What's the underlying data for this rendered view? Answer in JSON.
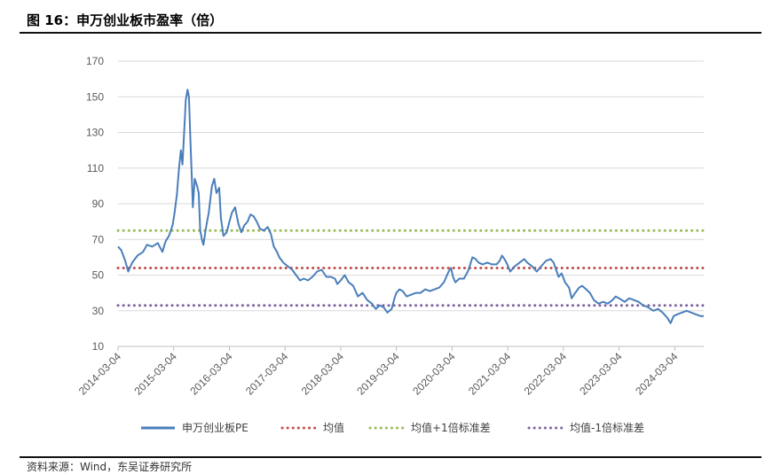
{
  "figure": {
    "title": "图 16：申万创业板市盈率（倍）",
    "source": "资料来源：Wind，东吴证券研究所"
  },
  "chart_data": {
    "type": "line",
    "title": "",
    "xlabel": "",
    "ylabel": "",
    "ylim": [
      10,
      170
    ],
    "yticks": [
      10,
      30,
      50,
      70,
      90,
      110,
      130,
      150,
      170
    ],
    "xlim": [
      "2014-03-04",
      "2024-09-10"
    ],
    "xticks": [
      "2014-03-04",
      "2015-03-04",
      "2016-03-04",
      "2017-03-04",
      "2018-03-04",
      "2019-03-04",
      "2020-03-04",
      "2021-03-04",
      "2022-03-04",
      "2023-03-04",
      "2024-03-04"
    ],
    "grid": "horizontal",
    "legend": "bottom",
    "series": [
      {
        "name": "申万创业板PE",
        "color": "#4A7EBB",
        "style": "solid",
        "points": [
          [
            "2014-03-04",
            66
          ],
          [
            "2014-03-25",
            64
          ],
          [
            "2014-04-20",
            58
          ],
          [
            "2014-05-10",
            52
          ],
          [
            "2014-06-05",
            57
          ],
          [
            "2014-07-10",
            61
          ],
          [
            "2014-08-15",
            63
          ],
          [
            "2014-09-10",
            67
          ],
          [
            "2014-10-15",
            66
          ],
          [
            "2014-11-20",
            68
          ],
          [
            "2014-12-20",
            63
          ],
          [
            "2015-01-10",
            69
          ],
          [
            "2015-02-01",
            72
          ],
          [
            "2015-02-25",
            78
          ],
          [
            "2015-03-10",
            85
          ],
          [
            "2015-03-25",
            95
          ],
          [
            "2015-04-08",
            110
          ],
          [
            "2015-04-20",
            120
          ],
          [
            "2015-05-01",
            112
          ],
          [
            "2015-05-12",
            130
          ],
          [
            "2015-05-22",
            148
          ],
          [
            "2015-06-03",
            154
          ],
          [
            "2015-06-12",
            150
          ],
          [
            "2015-06-22",
            125
          ],
          [
            "2015-07-03",
            100
          ],
          [
            "2015-07-08",
            88
          ],
          [
            "2015-07-20",
            104
          ],
          [
            "2015-08-05",
            100
          ],
          [
            "2015-08-15",
            96
          ],
          [
            "2015-08-25",
            75
          ],
          [
            "2015-09-05",
            70
          ],
          [
            "2015-09-15",
            67
          ],
          [
            "2015-10-01",
            76
          ],
          [
            "2015-10-20",
            85
          ],
          [
            "2015-11-10",
            100
          ],
          [
            "2015-11-25",
            104
          ],
          [
            "2015-12-10",
            96
          ],
          [
            "2015-12-28",
            99
          ],
          [
            "2016-01-08",
            82
          ],
          [
            "2016-01-25",
            72
          ],
          [
            "2016-02-15",
            74
          ],
          [
            "2016-03-04",
            80
          ],
          [
            "2016-03-20",
            85
          ],
          [
            "2016-04-10",
            88
          ],
          [
            "2016-05-01",
            79
          ],
          [
            "2016-05-20",
            74
          ],
          [
            "2016-06-10",
            78
          ],
          [
            "2016-07-01",
            80
          ],
          [
            "2016-07-20",
            84
          ],
          [
            "2016-08-10",
            83
          ],
          [
            "2016-08-30",
            80
          ],
          [
            "2016-09-20",
            76
          ],
          [
            "2016-10-15",
            75
          ],
          [
            "2016-11-10",
            77
          ],
          [
            "2016-12-01",
            73
          ],
          [
            "2016-12-20",
            66
          ],
          [
            "2017-01-10",
            63
          ],
          [
            "2017-01-25",
            60
          ],
          [
            "2017-02-20",
            57
          ],
          [
            "2017-03-20",
            55
          ],
          [
            "2017-04-20",
            53
          ],
          [
            "2017-05-15",
            50
          ],
          [
            "2017-06-10",
            47
          ],
          [
            "2017-07-05",
            48
          ],
          [
            "2017-08-01",
            47
          ],
          [
            "2017-08-30",
            49
          ],
          [
            "2017-09-30",
            52
          ],
          [
            "2017-10-30",
            53
          ],
          [
            "2017-11-30",
            49
          ],
          [
            "2017-12-30",
            49
          ],
          [
            "2018-01-25",
            48
          ],
          [
            "2018-02-10",
            45
          ],
          [
            "2018-03-04",
            47
          ],
          [
            "2018-03-30",
            50
          ],
          [
            "2018-04-25",
            46
          ],
          [
            "2018-05-25",
            44
          ],
          [
            "2018-06-25",
            38
          ],
          [
            "2018-07-25",
            40
          ],
          [
            "2018-08-25",
            36
          ],
          [
            "2018-09-25",
            34
          ],
          [
            "2018-10-20",
            31
          ],
          [
            "2018-11-15",
            33
          ],
          [
            "2018-12-10",
            32
          ],
          [
            "2019-01-04",
            29
          ],
          [
            "2019-02-01",
            31
          ],
          [
            "2019-02-20",
            37
          ],
          [
            "2019-03-04",
            40
          ],
          [
            "2019-03-25",
            42
          ],
          [
            "2019-04-15",
            41
          ],
          [
            "2019-05-10",
            38
          ],
          [
            "2019-06-10",
            39
          ],
          [
            "2019-07-10",
            40
          ],
          [
            "2019-08-10",
            40
          ],
          [
            "2019-09-10",
            42
          ],
          [
            "2019-10-10",
            41
          ],
          [
            "2019-11-10",
            42
          ],
          [
            "2019-12-10",
            43
          ],
          [
            "2020-01-10",
            46
          ],
          [
            "2020-02-10",
            52
          ],
          [
            "2020-02-25",
            54
          ],
          [
            "2020-03-10",
            49
          ],
          [
            "2020-03-25",
            46
          ],
          [
            "2020-04-20",
            48
          ],
          [
            "2020-05-20",
            48
          ],
          [
            "2020-06-15",
            52
          ],
          [
            "2020-07-01",
            56
          ],
          [
            "2020-07-15",
            60
          ],
          [
            "2020-08-05",
            59
          ],
          [
            "2020-08-25",
            57
          ],
          [
            "2020-09-20",
            56
          ],
          [
            "2020-10-20",
            57
          ],
          [
            "2020-11-20",
            56
          ],
          [
            "2020-12-20",
            56
          ],
          [
            "2021-01-10",
            58
          ],
          [
            "2021-01-25",
            61
          ],
          [
            "2021-02-10",
            59
          ],
          [
            "2021-03-01",
            56
          ],
          [
            "2021-03-20",
            52
          ],
          [
            "2021-04-20",
            55
          ],
          [
            "2021-05-20",
            57
          ],
          [
            "2021-06-20",
            59
          ],
          [
            "2021-07-10",
            57
          ],
          [
            "2021-08-10",
            55
          ],
          [
            "2021-09-10",
            52
          ],
          [
            "2021-10-10",
            55
          ],
          [
            "2021-11-10",
            58
          ],
          [
            "2021-12-10",
            59
          ],
          [
            "2021-12-30",
            57
          ],
          [
            "2022-01-15",
            53
          ],
          [
            "2022-02-01",
            49
          ],
          [
            "2022-02-20",
            51
          ],
          [
            "2022-03-15",
            46
          ],
          [
            "2022-04-10",
            43
          ],
          [
            "2022-04-27",
            37
          ],
          [
            "2022-05-20",
            40
          ],
          [
            "2022-06-15",
            43
          ],
          [
            "2022-07-05",
            44
          ],
          [
            "2022-08-01",
            42
          ],
          [
            "2022-08-25",
            40
          ],
          [
            "2022-09-20",
            36
          ],
          [
            "2022-10-20",
            34
          ],
          [
            "2022-11-20",
            35
          ],
          [
            "2022-12-20",
            34
          ],
          [
            "2023-01-20",
            36
          ],
          [
            "2023-02-10",
            38
          ],
          [
            "2023-03-04",
            37
          ],
          [
            "2023-04-10",
            35
          ],
          [
            "2023-05-10",
            37
          ],
          [
            "2023-06-10",
            36
          ],
          [
            "2023-07-10",
            35
          ],
          [
            "2023-08-10",
            33
          ],
          [
            "2023-09-10",
            32
          ],
          [
            "2023-10-15",
            30
          ],
          [
            "2023-11-15",
            31
          ],
          [
            "2023-12-15",
            29
          ],
          [
            "2024-01-15",
            26
          ],
          [
            "2024-02-05",
            23
          ],
          [
            "2024-02-25",
            27
          ],
          [
            "2024-03-20",
            28
          ],
          [
            "2024-04-20",
            29
          ],
          [
            "2024-05-20",
            30
          ],
          [
            "2024-06-20",
            29
          ],
          [
            "2024-07-20",
            28
          ],
          [
            "2024-08-20",
            27
          ],
          [
            "2024-09-10",
            27
          ]
        ]
      },
      {
        "name": "均值",
        "color": "#C0504D",
        "style": "dotted",
        "constant": 54
      },
      {
        "name": "均值+1倍标准差",
        "color": "#9BBB59",
        "style": "dotted",
        "constant": 75
      },
      {
        "name": "均值-1倍标准差",
        "color": "#8064A2",
        "style": "dotted",
        "constant": 33
      }
    ]
  }
}
